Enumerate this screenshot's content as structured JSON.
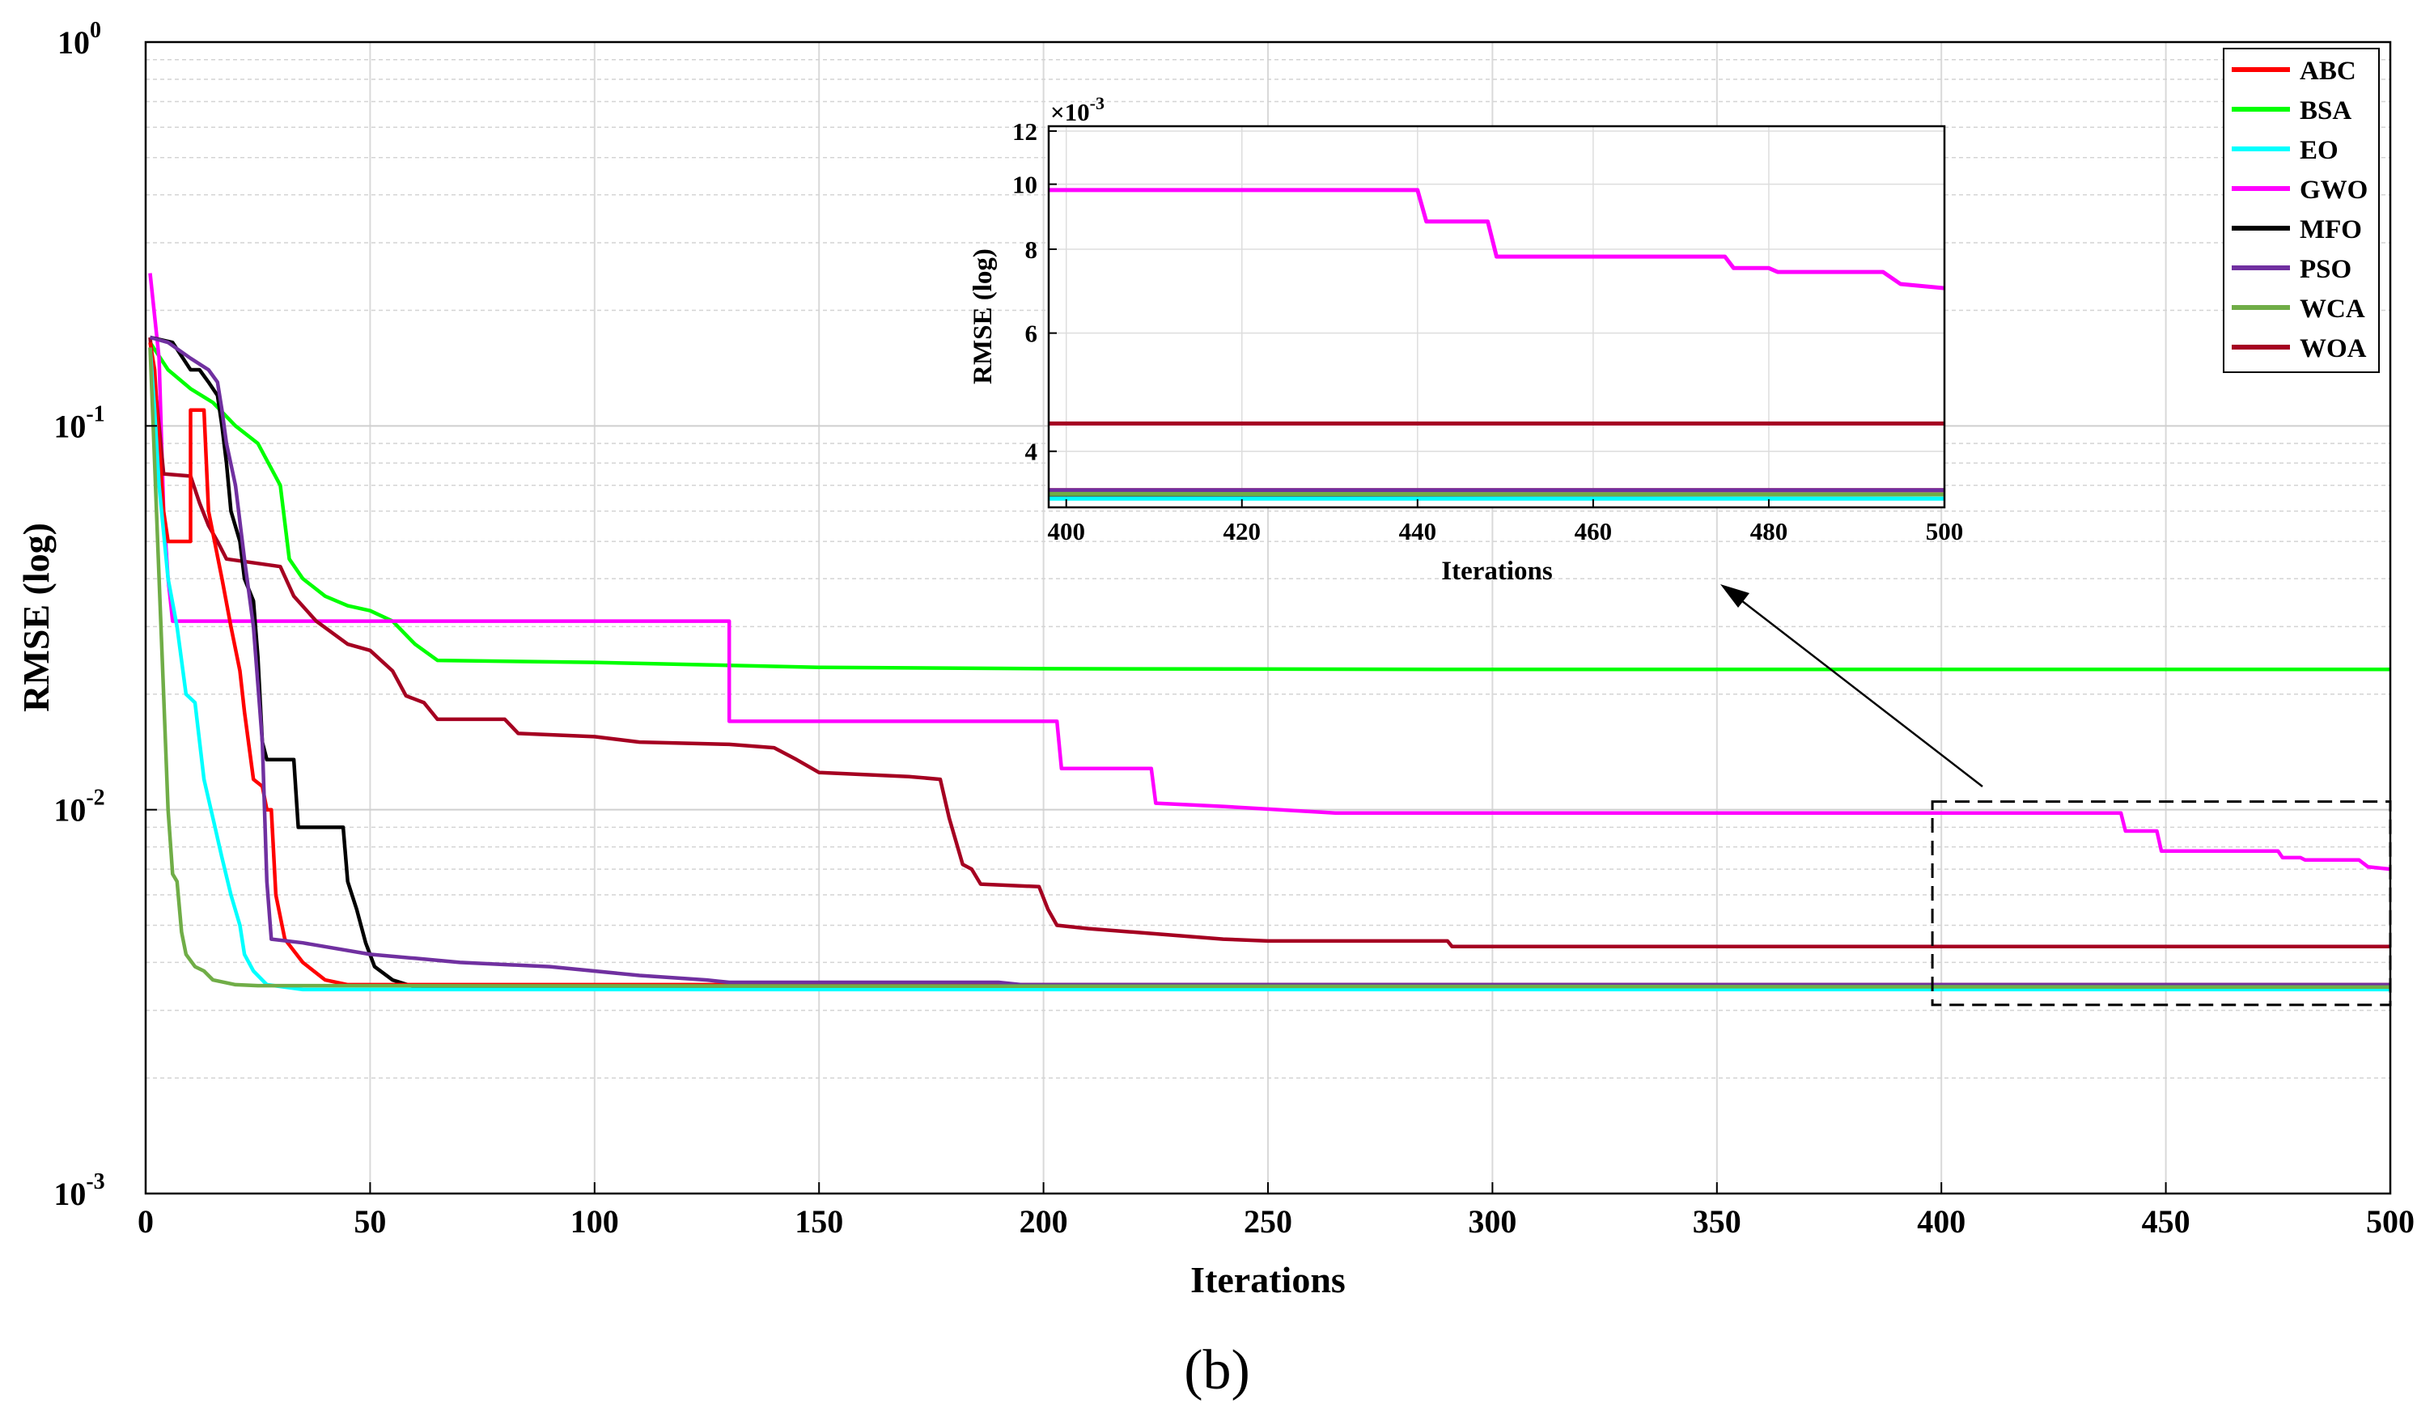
{
  "chart_data": {
    "type": "line",
    "panel_label": "(b)",
    "xlabel": "Iterations",
    "ylabel": "RMSE (log)",
    "xlim": [
      0,
      500
    ],
    "ylim": [
      0.001,
      1
    ],
    "yscale": "log",
    "grid": true,
    "legend_position": "top-right",
    "x_ticks": [
      0,
      50,
      100,
      150,
      200,
      250,
      300,
      350,
      400,
      450,
      500
    ],
    "y_ticks": [
      {
        "value": 0.001,
        "base": "10",
        "exp": "-3"
      },
      {
        "value": 0.01,
        "base": "10",
        "exp": "-2"
      },
      {
        "value": 0.1,
        "base": "10",
        "exp": "-1"
      },
      {
        "value": 1,
        "base": "10",
        "exp": "0"
      }
    ],
    "series": [
      {
        "name": "ABC",
        "color": "#ff0000",
        "points": [
          [
            1,
            0.165
          ],
          [
            2,
            0.14
          ],
          [
            3,
            0.09
          ],
          [
            4,
            0.06
          ],
          [
            5,
            0.05
          ],
          [
            10,
            0.05
          ],
          [
            10,
            0.11
          ],
          [
            13,
            0.11
          ],
          [
            14,
            0.06
          ],
          [
            17,
            0.04
          ],
          [
            19,
            0.03
          ],
          [
            21,
            0.023
          ],
          [
            22,
            0.018
          ],
          [
            24,
            0.012
          ],
          [
            26,
            0.0115
          ],
          [
            27,
            0.01
          ],
          [
            28,
            0.01
          ],
          [
            29,
            0.006
          ],
          [
            31,
            0.0046
          ],
          [
            35,
            0.004
          ],
          [
            40,
            0.0036
          ],
          [
            45,
            0.0035
          ],
          [
            500,
            0.0035
          ]
        ]
      },
      {
        "name": "BSA",
        "color": "#00ff00",
        "points": [
          [
            1,
            0.165
          ],
          [
            5,
            0.14
          ],
          [
            10,
            0.125
          ],
          [
            15,
            0.115
          ],
          [
            20,
            0.1
          ],
          [
            25,
            0.09
          ],
          [
            30,
            0.07
          ],
          [
            32,
            0.045
          ],
          [
            35,
            0.04
          ],
          [
            40,
            0.036
          ],
          [
            45,
            0.034
          ],
          [
            50,
            0.033
          ],
          [
            55,
            0.031
          ],
          [
            60,
            0.027
          ],
          [
            65,
            0.0245
          ],
          [
            100,
            0.0242
          ],
          [
            150,
            0.0235
          ],
          [
            200,
            0.0233
          ],
          [
            300,
            0.0232
          ],
          [
            500,
            0.0232
          ]
        ]
      },
      {
        "name": "EO",
        "color": "#00ffff",
        "points": [
          [
            1,
            0.16
          ],
          [
            2,
            0.11
          ],
          [
            3,
            0.07
          ],
          [
            5,
            0.04
          ],
          [
            7,
            0.03
          ],
          [
            9,
            0.02
          ],
          [
            11,
            0.019
          ],
          [
            13,
            0.012
          ],
          [
            15,
            0.0095
          ],
          [
            17,
            0.0075
          ],
          [
            19,
            0.006
          ],
          [
            21,
            0.005
          ],
          [
            22,
            0.0042
          ],
          [
            24,
            0.0038
          ],
          [
            27,
            0.0035
          ],
          [
            35,
            0.0034
          ],
          [
            500,
            0.0034
          ]
        ]
      },
      {
        "name": "GWO",
        "color": "#ff00ff",
        "points": [
          [
            1,
            0.25
          ],
          [
            3,
            0.15
          ],
          [
            4,
            0.06
          ],
          [
            5,
            0.04
          ],
          [
            6,
            0.031
          ],
          [
            130,
            0.031
          ],
          [
            130,
            0.017
          ],
          [
            203,
            0.017
          ],
          [
            204,
            0.0128
          ],
          [
            224,
            0.0128
          ],
          [
            225,
            0.0104
          ],
          [
            240,
            0.0102
          ],
          [
            265,
            0.0098
          ],
          [
            440,
            0.0098
          ],
          [
            441,
            0.0088
          ],
          [
            448,
            0.0088
          ],
          [
            449,
            0.0078
          ],
          [
            475,
            0.0078
          ],
          [
            476,
            0.0075
          ],
          [
            480,
            0.0075
          ],
          [
            481,
            0.0074
          ],
          [
            493,
            0.0074
          ],
          [
            495,
            0.0071
          ],
          [
            500,
            0.007
          ]
        ]
      },
      {
        "name": "MFO",
        "color": "#000000",
        "points": [
          [
            1,
            0.17
          ],
          [
            6,
            0.165
          ],
          [
            10,
            0.14
          ],
          [
            12,
            0.14
          ],
          [
            14,
            0.13
          ],
          [
            16,
            0.12
          ],
          [
            17,
            0.1
          ],
          [
            18,
            0.08
          ],
          [
            19,
            0.06
          ],
          [
            21,
            0.05
          ],
          [
            22,
            0.04
          ],
          [
            24,
            0.035
          ],
          [
            25,
            0.025
          ],
          [
            26,
            0.015
          ],
          [
            27,
            0.0135
          ],
          [
            33,
            0.0135
          ],
          [
            34,
            0.009
          ],
          [
            44,
            0.009
          ],
          [
            45,
            0.0065
          ],
          [
            47,
            0.0055
          ],
          [
            49,
            0.0045
          ],
          [
            51,
            0.0039
          ],
          [
            55,
            0.0036
          ],
          [
            60,
            0.00345
          ],
          [
            500,
            0.00345
          ]
        ]
      },
      {
        "name": "PSO",
        "color": "#7030a0",
        "points": [
          [
            1,
            0.17
          ],
          [
            5,
            0.165
          ],
          [
            10,
            0.15
          ],
          [
            14,
            0.14
          ],
          [
            16,
            0.13
          ],
          [
            17,
            0.11
          ],
          [
            18,
            0.09
          ],
          [
            20,
            0.07
          ],
          [
            22,
            0.045
          ],
          [
            24,
            0.03
          ],
          [
            26,
            0.015
          ],
          [
            27,
            0.0065
          ],
          [
            28,
            0.0046
          ],
          [
            35,
            0.0045
          ],
          [
            50,
            0.0042
          ],
          [
            60,
            0.0041
          ],
          [
            70,
            0.004
          ],
          [
            90,
            0.0039
          ],
          [
            110,
            0.0037
          ],
          [
            125,
            0.0036
          ],
          [
            130,
            0.00355
          ],
          [
            190,
            0.00355
          ],
          [
            195,
            0.0035
          ],
          [
            500,
            0.0035
          ]
        ]
      },
      {
        "name": "WCA",
        "color": "#70ad47",
        "points": [
          [
            1,
            0.16
          ],
          [
            2,
            0.08
          ],
          [
            3,
            0.04
          ],
          [
            4,
            0.02
          ],
          [
            5,
            0.01
          ],
          [
            6,
            0.0068
          ],
          [
            7,
            0.0065
          ],
          [
            8,
            0.0048
          ],
          [
            9,
            0.0042
          ],
          [
            11,
            0.0039
          ],
          [
            13,
            0.0038
          ],
          [
            15,
            0.0036
          ],
          [
            20,
            0.0035
          ],
          [
            25,
            0.00348
          ],
          [
            500,
            0.00345
          ]
        ]
      },
      {
        "name": "WOA",
        "color": "#a50021",
        "points": [
          [
            1,
            0.17
          ],
          [
            3,
            0.1
          ],
          [
            4,
            0.075
          ],
          [
            10,
            0.074
          ],
          [
            12,
            0.063
          ],
          [
            14,
            0.055
          ],
          [
            16,
            0.05
          ],
          [
            18,
            0.045
          ],
          [
            30,
            0.043
          ],
          [
            33,
            0.036
          ],
          [
            38,
            0.031
          ],
          [
            45,
            0.027
          ],
          [
            50,
            0.026
          ],
          [
            55,
            0.023
          ],
          [
            58,
            0.0198
          ],
          [
            62,
            0.019
          ],
          [
            65,
            0.0172
          ],
          [
            80,
            0.0172
          ],
          [
            83,
            0.0158
          ],
          [
            100,
            0.0155
          ],
          [
            110,
            0.015
          ],
          [
            130,
            0.0148
          ],
          [
            140,
            0.0145
          ],
          [
            145,
            0.0135
          ],
          [
            150,
            0.0125
          ],
          [
            170,
            0.0122
          ],
          [
            177,
            0.012
          ],
          [
            179,
            0.0095
          ],
          [
            182,
            0.0072
          ],
          [
            184,
            0.007
          ],
          [
            186,
            0.0064
          ],
          [
            199,
            0.0063
          ],
          [
            201,
            0.0055
          ],
          [
            203,
            0.005
          ],
          [
            210,
            0.0049
          ],
          [
            220,
            0.0048
          ],
          [
            230,
            0.0047
          ],
          [
            240,
            0.0046
          ],
          [
            250,
            0.00455
          ],
          [
            290,
            0.00455
          ],
          [
            291,
            0.0044
          ],
          [
            500,
            0.0044
          ]
        ]
      }
    ],
    "zoom_box": {
      "x_range": [
        398,
        500
      ],
      "y_range": [
        0.0031,
        0.0105
      ]
    },
    "inset": {
      "xlabel": "Iterations",
      "ylabel": "RMSE (log)",
      "xlim": [
        398,
        500
      ],
      "ylim": [
        0.0033,
        0.0122
      ],
      "x_ticks": [
        400,
        420,
        440,
        460,
        480,
        500
      ],
      "y_ticks": [
        4,
        6,
        8,
        10,
        12
      ],
      "y_multiplier_base": "×10",
      "y_multiplier_exp": "-3",
      "series_names": [
        "GWO",
        "WOA",
        "MFO",
        "ABC",
        "EO",
        "PSO",
        "WCA"
      ]
    }
  }
}
